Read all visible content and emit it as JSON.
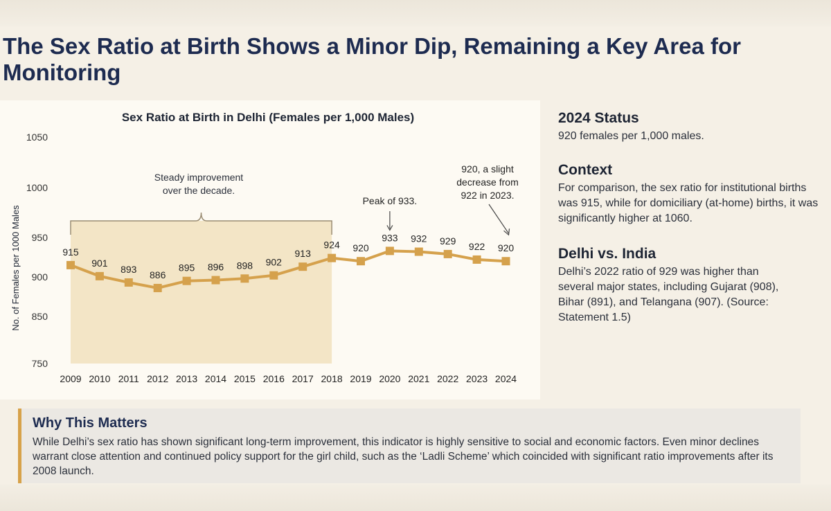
{
  "page": {
    "title": "The Sex Ratio at Birth Shows a Minor Dip, Remaining a Key Area for Monitoring"
  },
  "colors": {
    "line": "#d5a14c",
    "shade": "#f3e5c6",
    "bracket": "#9a8c72",
    "text": "#1d2433"
  },
  "chart_data": {
    "type": "line",
    "title": "Sex Ratio at Birth in Delhi (Females per 1,000 Males)",
    "xlabel": "",
    "ylabel": "No. of Females per 1000 Males",
    "yticks": [
      750,
      850,
      900,
      950,
      1000,
      1050
    ],
    "ylim": [
      750,
      1050
    ],
    "categories": [
      "2009",
      "2010",
      "2011",
      "2012",
      "2013",
      "2014",
      "2015",
      "2016",
      "2017",
      "2018",
      "2019",
      "2020",
      "2021",
      "2022",
      "2023",
      "2024"
    ],
    "series": [
      {
        "name": "Sex Ratio at Birth",
        "values": [
          915,
          901,
          893,
          886,
          895,
          896,
          898,
          902,
          913,
          924,
          920,
          933,
          932,
          929,
          922,
          920
        ]
      }
    ],
    "shaded_range": [
      "2009",
      "2018"
    ],
    "annotations": {
      "steady": [
        "Steady improvement",
        "over the decade."
      ],
      "peak": "Peak of 933.",
      "latest": [
        "920, a slight",
        "decrease from",
        "922 in 2023."
      ]
    }
  },
  "side": {
    "status": {
      "heading": "2024 Status",
      "text": "920 females per 1,000 males."
    },
    "context": {
      "heading": "Context",
      "text": "For comparison, the sex ratio for institutional births was 915, while for domiciliary (at-home) births, it was significantly higher at 1060."
    },
    "india": {
      "heading": "Delhi vs. India",
      "text": "Delhi’s 2022 ratio of 929 was higher than several major states, including Gujarat (908), Bihar (891), and Telangana (907). (Source: Statement 1.5)"
    }
  },
  "why": {
    "heading": "Why This Matters",
    "text": "While Delhi’s sex ratio has shown significant long-term improvement, this indicator is highly sensitive to social and economic factors. Even minor declines warrant close attention and continued policy support for the girl child, such as the ‘Ladli Scheme’ which coincided with significant ratio improvements after its 2008 launch."
  }
}
